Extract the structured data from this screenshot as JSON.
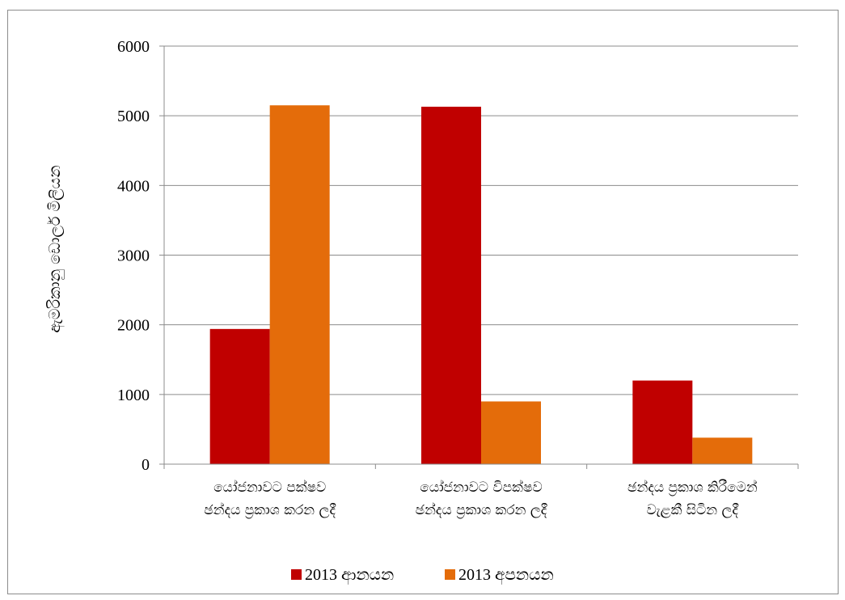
{
  "chart_data": {
    "type": "bar",
    "ylabel": "ඇමරිකානු ඩොලර් මිලියන",
    "ylim": [
      0,
      6000
    ],
    "yticks": [
      0,
      1000,
      2000,
      3000,
      4000,
      5000,
      6000
    ],
    "grid": true,
    "legend_position": "bottom",
    "categories": [
      [
        "යෝජනාවට පක්ෂව",
        "ඡන්දය ප්‍රකාශ කරන ලදී"
      ],
      [
        "යෝජනාවට විපක්ෂව",
        "ඡන්දය ප්‍රකාශ කරන ලදී"
      ],
      [
        "ඡන්දය ප්‍රකාශ කිරීමෙන්",
        "වැළකී සිටින ලදී"
      ]
    ],
    "series": [
      {
        "name": "2013 ආනයන",
        "color": "#c00000",
        "values": [
          1940,
          5130,
          1200
        ]
      },
      {
        "name": "2013 අපනයන",
        "color": "#e46c0a",
        "values": [
          5150,
          900,
          380
        ]
      }
    ]
  }
}
